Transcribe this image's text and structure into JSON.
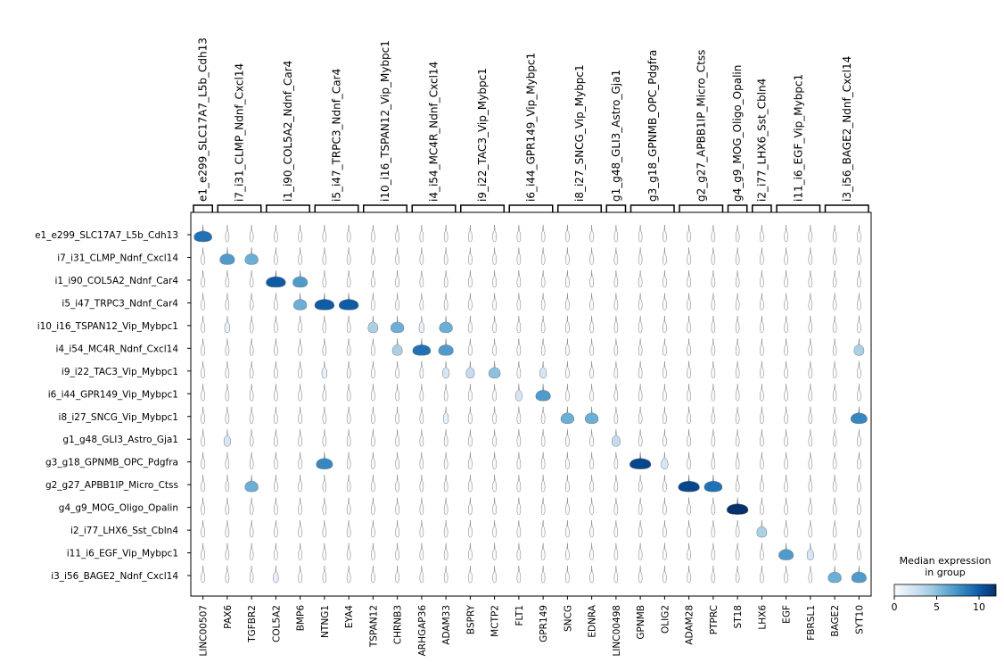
{
  "chart_data": {
    "type": "stacked_violin",
    "categories": [
      "LINC00507",
      "PAX6",
      "TGFBR2",
      "COL5A2",
      "BMP6",
      "NTNG1",
      "EYA4",
      "TSPAN12",
      "CHRNB3",
      "ARHGAP36",
      "ADAM33",
      "BSPRY",
      "MCTP2",
      "FLT1",
      "GPR149",
      "SNCG",
      "EDNRA",
      "LINC00498",
      "GPNMB",
      "OLIG2",
      "ADAM28",
      "PTPRC",
      "ST18",
      "LHX6",
      "EGF",
      "FBRSL1",
      "BAGE2",
      "SYT10"
    ],
    "groups": [
      {
        "label": "e1_e299_SLC17A7_L5b_Cdh13",
        "members": [
          "LINC00507"
        ]
      },
      {
        "label": "i7_i31_CLMP_Ndnf_Cxcl14",
        "members": [
          "PAX6",
          "TGFBR2"
        ]
      },
      {
        "label": "i1_i90_COL5A2_Ndnf_Car4",
        "members": [
          "COL5A2",
          "BMP6"
        ]
      },
      {
        "label": "i5_i47_TRPC3_Ndnf_Car4",
        "members": [
          "NTNG1",
          "EYA4"
        ]
      },
      {
        "label": "i10_i16_TSPAN12_Vip_Mybpc1",
        "members": [
          "TSPAN12",
          "CHRNB3"
        ]
      },
      {
        "label": "i4_i54_MC4R_Ndnf_Cxcl14",
        "members": [
          "ARHGAP36",
          "ADAM33"
        ]
      },
      {
        "label": "i9_i22_TAC3_Vip_Mybpc1",
        "members": [
          "BSPRY",
          "MCTP2"
        ]
      },
      {
        "label": "i6_i44_GPR149_Vip_Mybpc1",
        "members": [
          "FLT1",
          "GPR149"
        ]
      },
      {
        "label": "i8_i27_SNCG_Vip_Mybpc1",
        "members": [
          "SNCG",
          "EDNRA"
        ]
      },
      {
        "label": "g1_g48_GLI3_Astro_Gja1",
        "members": [
          "LINC00498"
        ]
      },
      {
        "label": "g3_g18_GPNMB_OPC_Pdgfra",
        "members": [
          "GPNMB",
          "OLIG2"
        ]
      },
      {
        "label": "g2_g27_APBB1IP_Micro_Ctss",
        "members": [
          "ADAM28",
          "PTPRC"
        ]
      },
      {
        "label": "g4_g9_MOG_Oligo_Opalin",
        "members": [
          "ST18"
        ]
      },
      {
        "label": "i2_i77_LHX6_Sst_Cbln4",
        "members": [
          "LHX6"
        ]
      },
      {
        "label": "i11_i6_EGF_Vip_Mybpc1",
        "members": [
          "EGF",
          "FBRSL1"
        ]
      },
      {
        "label": "i3_i56_BAGE2_Ndnf_Cxcl14",
        "members": [
          "BAGE2",
          "SYT10"
        ]
      }
    ],
    "rows": [
      "e1_e299_SLC17A7_L5b_Cdh13",
      "i7_i31_CLMP_Ndnf_Cxcl14",
      "i1_i90_COL5A2_Ndnf_Car4",
      "i5_i47_TRPC3_Ndnf_Car4",
      "i10_i16_TSPAN12_Vip_Mybpc1",
      "i4_i54_MC4R_Ndnf_Cxcl14",
      "i9_i22_TAC3_Vip_Mybpc1",
      "i6_i44_GPR149_Vip_Mybpc1",
      "i8_i27_SNCG_Vip_Mybpc1",
      "g1_g48_GLI3_Astro_Gja1",
      "g3_g18_GPNMB_OPC_Pdgfra",
      "g2_g27_APBB1IP_Micro_Ctss",
      "g4_g9_MOG_Oligo_Opalin",
      "i2_i77_LHX6_Sst_Cbln4",
      "i11_i6_EGF_Vip_Mybpc1",
      "i3_i56_BAGE2_Ndnf_Cxcl14"
    ],
    "values": [
      [
        9,
        0,
        0,
        0,
        0,
        0,
        0,
        0,
        0,
        0,
        0,
        0,
        0,
        0,
        0,
        0,
        0,
        0,
        0,
        0,
        0,
        0,
        0,
        0,
        0,
        0,
        0,
        0
      ],
      [
        0,
        7,
        6,
        0,
        0,
        0,
        0,
        0,
        0,
        0,
        0,
        0,
        0,
        0,
        0,
        0,
        0,
        0,
        0,
        0,
        0,
        0,
        0,
        0,
        0,
        0,
        0,
        0
      ],
      [
        0,
        0,
        0,
        10,
        7,
        0,
        0,
        0,
        0,
        0,
        0,
        0,
        0,
        0,
        0,
        0,
        0,
        0,
        0,
        0,
        0,
        0,
        0,
        0,
        0,
        0,
        0,
        0
      ],
      [
        0,
        0,
        0,
        0,
        6,
        10,
        10,
        0,
        0,
        0,
        0,
        0,
        0,
        0,
        0,
        0,
        0,
        0,
        0,
        0,
        0,
        0,
        0,
        0,
        0,
        0,
        0,
        0
      ],
      [
        0,
        1,
        0,
        0,
        0,
        0,
        0,
        4,
        6,
        1,
        6,
        0,
        0,
        0,
        0,
        0,
        0,
        0,
        0,
        0,
        0,
        0,
        0,
        0,
        0,
        0,
        0,
        0
      ],
      [
        0,
        0,
        0,
        0,
        0,
        0,
        0,
        0,
        4,
        9,
        7,
        0,
        0,
        0,
        0,
        0,
        0,
        0,
        0,
        0,
        0,
        0,
        0,
        0,
        0,
        0,
        0,
        4
      ],
      [
        0,
        0,
        0,
        0,
        0,
        1,
        0,
        0,
        0,
        0,
        2,
        3,
        5,
        0,
        2,
        0,
        0,
        0,
        0,
        0,
        0,
        0,
        0,
        0,
        0,
        0,
        0,
        0
      ],
      [
        0,
        0,
        0,
        0,
        0,
        0,
        0,
        0,
        0,
        0,
        0,
        0,
        0,
        2,
        7,
        0,
        0,
        0,
        0,
        0,
        0,
        0,
        0,
        0,
        0,
        0,
        0,
        0
      ],
      [
        0,
        0,
        0,
        0,
        0,
        0,
        0,
        0,
        0,
        0,
        1,
        0,
        0,
        0,
        0,
        6,
        6,
        0,
        0,
        0,
        0,
        0,
        0,
        0,
        0,
        0,
        0,
        8
      ],
      [
        0,
        2,
        0,
        0,
        0,
        0,
        0,
        0,
        0,
        0,
        0,
        0,
        0,
        0,
        0,
        0,
        0,
        3,
        0,
        0,
        0,
        0,
        0,
        0,
        0,
        0,
        0,
        0
      ],
      [
        0,
        0,
        0,
        0,
        0,
        8,
        0,
        0,
        0,
        0,
        0,
        0,
        0,
        0,
        0,
        0,
        0,
        0,
        11,
        2,
        0,
        0,
        0,
        0,
        0,
        0,
        0,
        0
      ],
      [
        0,
        0,
        6,
        0,
        0,
        0,
        0,
        0,
        0,
        0,
        0,
        0,
        0,
        0,
        0,
        0,
        0,
        0,
        0,
        0,
        11,
        9,
        0,
        0,
        0,
        0,
        0,
        0
      ],
      [
        0,
        0,
        0,
        0,
        0,
        0,
        0,
        0,
        0,
        0,
        0,
        0,
        0,
        0,
        0,
        0,
        0,
        0,
        0,
        0,
        0,
        0,
        12,
        0,
        0,
        0,
        0,
        0
      ],
      [
        0,
        0,
        0,
        0,
        0,
        0,
        0,
        0,
        0,
        0,
        0,
        0,
        0,
        0,
        0,
        0,
        0,
        0,
        0,
        0,
        0,
        0,
        0,
        4,
        0,
        0,
        0,
        0
      ],
      [
        0,
        0,
        0,
        0,
        0,
        0,
        0,
        0,
        0,
        0,
        0,
        0,
        0,
        0,
        0,
        0,
        0,
        0,
        0,
        0,
        0,
        0,
        0,
        0,
        7,
        2,
        0,
        0
      ],
      [
        0,
        0,
        0,
        1,
        0,
        0,
        0,
        0,
        0,
        0,
        0,
        0,
        0,
        0,
        0,
        0,
        0,
        0,
        0,
        0,
        0,
        0,
        0,
        0,
        0,
        0,
        6,
        7
      ]
    ],
    "colormap": "Blues",
    "colorbar": {
      "title": [
        "Median expression",
        "in group"
      ],
      "clim": [
        0,
        12
      ],
      "ticks": [
        0,
        5,
        10
      ]
    }
  }
}
